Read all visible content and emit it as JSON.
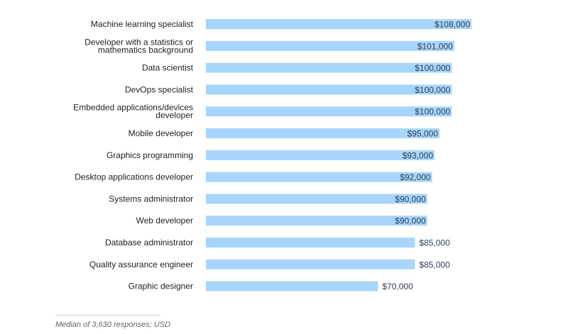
{
  "chart_data": {
    "type": "bar",
    "orientation": "horizontal",
    "categories": [
      "Machine learning specialist",
      "Developer with a statistics or mathematics background",
      "Data scientist",
      "DevOps specialist",
      "Embedded applications/devices developer",
      "Mobile developer",
      "Graphics programming",
      "Desktop applications developer",
      "Systems administrator",
      "Web developer",
      "Database administrator",
      "Quality assurance engineer",
      "Graphic designer"
    ],
    "category_lines": [
      [
        "Machine learning specialist"
      ],
      [
        "Developer with a statistics or",
        "mathematics background"
      ],
      [
        "Data scientist"
      ],
      [
        "DevOps specialist"
      ],
      [
        "Embedded applications/devices",
        "developer"
      ],
      [
        "Mobile developer"
      ],
      [
        "Graphics programming"
      ],
      [
        "Desktop applications developer"
      ],
      [
        "Systems administrator"
      ],
      [
        "Web developer"
      ],
      [
        "Database administrator"
      ],
      [
        "Quality assurance engineer"
      ],
      [
        "Graphic designer"
      ]
    ],
    "values": [
      108000,
      101000,
      100000,
      100000,
      100000,
      95000,
      93000,
      92000,
      90000,
      90000,
      85000,
      85000,
      70000
    ],
    "value_labels": [
      "$108,000",
      "$101,000",
      "$100,000",
      "$100,000",
      "$100,000",
      "$95,000",
      "$93,000",
      "$92,000",
      "$90,000",
      "$90,000",
      "$85,000",
      "$85,000",
      "$70,000"
    ],
    "label_inside_threshold": 90000,
    "xlim": [
      0,
      108000
    ],
    "bar_color": "#a8d5fb",
    "grid": false,
    "legend": "none"
  },
  "footnote": "Median of 3,630 responses; USD"
}
